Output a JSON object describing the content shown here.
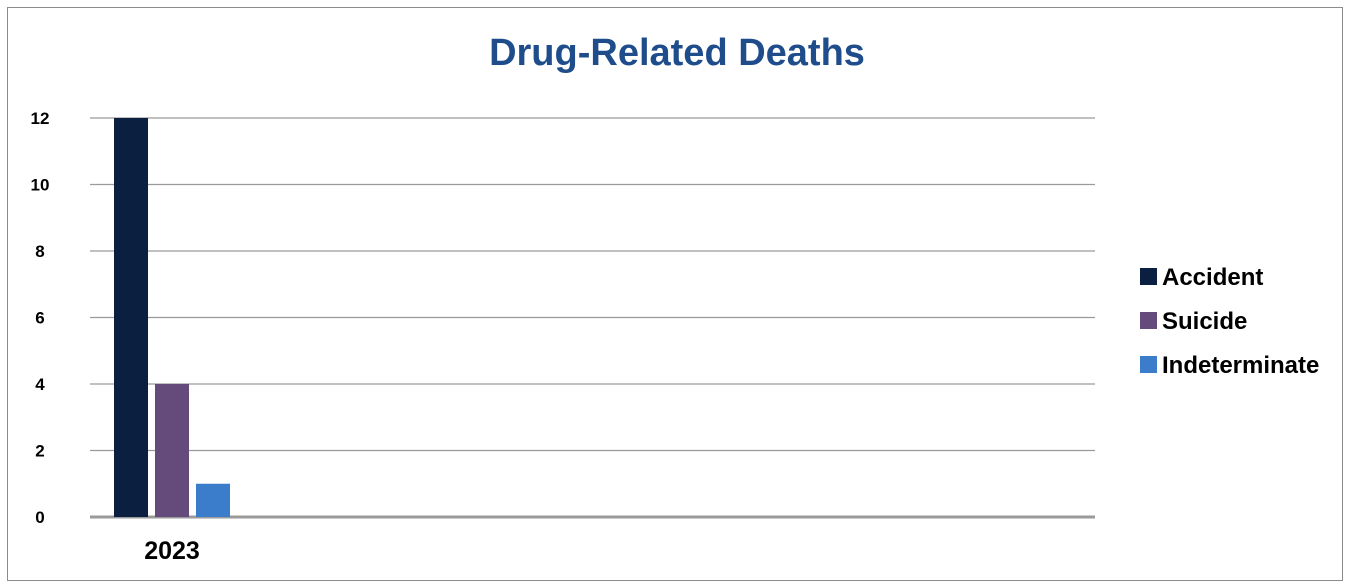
{
  "chart_data": {
    "type": "bar",
    "title": "Drug-Related Deaths",
    "categories": [
      "2023"
    ],
    "series": [
      {
        "name": "Accident",
        "values": [
          12
        ],
        "color": "#0b1f40"
      },
      {
        "name": "Suicide",
        "values": [
          4
        ],
        "color": "#644b7c"
      },
      {
        "name": "Indeterminate",
        "values": [
          1
        ],
        "color": "#3b7ccb"
      }
    ],
    "ylim": [
      0,
      12
    ],
    "yticks": [
      "0",
      "2",
      "4",
      "6",
      "8",
      "10",
      "12"
    ],
    "grid": true,
    "legend_position": "right",
    "colors": {
      "title": "#1f4d8c",
      "grid": "#9a9a9a",
      "text": "#000000"
    }
  }
}
